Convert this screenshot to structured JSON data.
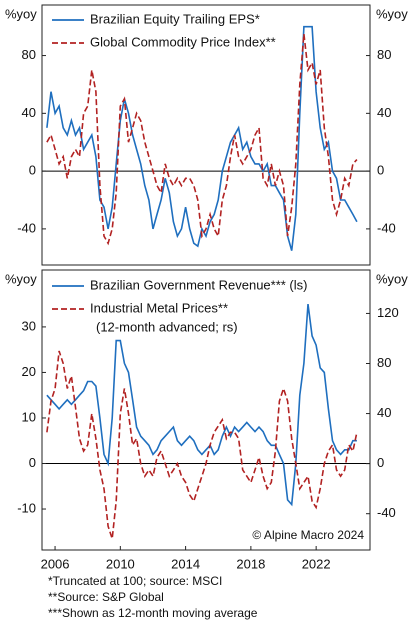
{
  "chart_data": [
    {
      "type": "line",
      "y_label": "%yoy",
      "y2_label": "%yoy",
      "x": [
        2005.5,
        2005.75,
        2006,
        2006.25,
        2006.5,
        2006.75,
        2007,
        2007.25,
        2007.5,
        2007.75,
        2008,
        2008.25,
        2008.5,
        2008.75,
        2009,
        2009.25,
        2009.5,
        2009.75,
        2010,
        2010.25,
        2010.5,
        2010.75,
        2011,
        2011.25,
        2011.5,
        2011.75,
        2012,
        2012.25,
        2012.5,
        2012.75,
        2013,
        2013.25,
        2013.5,
        2013.75,
        2014,
        2014.25,
        2014.5,
        2014.75,
        2015,
        2015.25,
        2015.5,
        2015.75,
        2016,
        2016.25,
        2016.5,
        2016.75,
        2017,
        2017.25,
        2017.5,
        2017.75,
        2018,
        2018.25,
        2018.5,
        2018.75,
        2019,
        2019.25,
        2019.5,
        2019.75,
        2020,
        2020.25,
        2020.5,
        2020.75,
        2021,
        2021.25,
        2021.5,
        2021.75,
        2022,
        2022.25,
        2022.5,
        2022.75,
        2023,
        2023.25,
        2023.5,
        2023.75,
        2024,
        2024.25,
        2024.5
      ],
      "xlim": [
        2005.2,
        2025.3
      ],
      "ylim": [
        -65,
        115
      ],
      "yticks": [
        -40,
        0,
        40,
        80
      ],
      "y2lim": [
        -65,
        115
      ],
      "y2ticks": [
        -40,
        0,
        40,
        80
      ],
      "zero_line": true,
      "series": [
        {
          "name": "Brazilian Equity Trailing EPS*",
          "color": "#1f6fbf",
          "style": "solid",
          "values": [
            30,
            55,
            40,
            45,
            30,
            25,
            35,
            25,
            30,
            15,
            20,
            25,
            10,
            -20,
            -25,
            -40,
            -25,
            5,
            35,
            50,
            40,
            25,
            15,
            5,
            -10,
            -20,
            -40,
            -30,
            -20,
            -5,
            -15,
            -35,
            -45,
            -40,
            -25,
            -40,
            -50,
            -52,
            -40,
            -45,
            -35,
            -30,
            -20,
            0,
            10,
            20,
            25,
            30,
            15,
            20,
            10,
            5,
            5,
            0,
            5,
            -10,
            -10,
            -15,
            -20,
            -45,
            -55,
            -30,
            40,
            100,
            100,
            100,
            55,
            30,
            15,
            20,
            0,
            -5,
            -20,
            -20,
            -25,
            -30,
            -35
          ]
        },
        {
          "name": "Global Commodity Price Index**",
          "color": "#b22222",
          "style": "dashed",
          "values": [
            20,
            25,
            15,
            5,
            10,
            -5,
            10,
            15,
            10,
            40,
            45,
            70,
            55,
            -10,
            -45,
            -50,
            -40,
            -15,
            45,
            50,
            20,
            30,
            40,
            35,
            20,
            10,
            0,
            -10,
            -15,
            5,
            -5,
            -10,
            -5,
            -10,
            -5,
            -5,
            -10,
            -20,
            -45,
            -40,
            -30,
            -40,
            -45,
            -20,
            -10,
            10,
            25,
            10,
            5,
            10,
            15,
            25,
            30,
            -5,
            -10,
            5,
            -10,
            0,
            -10,
            -45,
            -25,
            5,
            60,
            95,
            70,
            75,
            60,
            70,
            30,
            10,
            -20,
            -30,
            -20,
            -5,
            -10,
            5,
            8
          ]
        }
      ]
    },
    {
      "type": "line",
      "y_label": "%yoy",
      "y2_label": "%yoy",
      "x": [
        2005.5,
        2005.75,
        2006,
        2006.25,
        2006.5,
        2006.75,
        2007,
        2007.25,
        2007.5,
        2007.75,
        2008,
        2008.25,
        2008.5,
        2008.75,
        2009,
        2009.25,
        2009.5,
        2009.75,
        2010,
        2010.25,
        2010.5,
        2010.75,
        2011,
        2011.25,
        2011.5,
        2011.75,
        2012,
        2012.25,
        2012.5,
        2012.75,
        2013,
        2013.25,
        2013.5,
        2013.75,
        2014,
        2014.25,
        2014.5,
        2014.75,
        2015,
        2015.25,
        2015.5,
        2015.75,
        2016,
        2016.25,
        2016.5,
        2016.75,
        2017,
        2017.25,
        2017.5,
        2017.75,
        2018,
        2018.25,
        2018.5,
        2018.75,
        2019,
        2019.25,
        2019.5,
        2019.75,
        2020,
        2020.25,
        2020.5,
        2020.75,
        2021,
        2021.25,
        2021.5,
        2021.75,
        2022,
        2022.25,
        2022.5,
        2022.75,
        2023,
        2023.25,
        2023.5,
        2023.75,
        2024,
        2024.25,
        2024.5
      ],
      "xlim": [
        2005.2,
        2025.3
      ],
      "xticks": [
        2006,
        2010,
        2014,
        2018,
        2022
      ],
      "ylim": [
        -19,
        42.5
      ],
      "yticks": [
        -10,
        0,
        10,
        20,
        30
      ],
      "y2lim": [
        -69,
        154.7
      ],
      "y2ticks": [
        -40,
        0,
        40,
        80,
        120
      ],
      "zero_line": true,
      "legend_note": "(12-month advanced; rs)",
      "source": "© Alpine Macro 2024",
      "series": [
        {
          "name": "Brazilian Government Revenue*** (ls)",
          "color": "#1f6fbf",
          "style": "solid",
          "values": [
            15,
            14,
            13,
            12,
            13,
            14,
            13,
            14,
            15,
            16,
            18,
            18,
            17,
            10,
            2,
            0,
            10,
            27,
            27,
            22,
            20,
            14,
            8,
            6,
            5,
            4,
            2,
            3,
            5,
            6,
            7,
            8,
            5,
            4,
            5,
            6,
            5,
            3,
            2,
            3,
            4,
            2,
            3,
            6,
            8,
            6,
            8,
            7,
            8,
            9,
            8,
            7,
            8,
            7,
            5,
            4,
            4,
            2,
            0,
            -8,
            -9,
            0,
            15,
            22,
            35,
            28,
            26,
            21,
            20,
            12,
            5,
            3,
            2,
            3,
            3,
            5,
            5
          ]
        },
        {
          "name": "Industrial Metal Prices**",
          "color": "#b22222",
          "style": "dashed",
          "axis": "y2",
          "values": [
            25,
            50,
            60,
            90,
            80,
            60,
            70,
            45,
            20,
            10,
            15,
            40,
            20,
            -5,
            -20,
            -50,
            -60,
            -30,
            40,
            60,
            40,
            15,
            20,
            0,
            -10,
            -5,
            -10,
            5,
            10,
            0,
            -10,
            -5,
            0,
            -10,
            -15,
            -25,
            -30,
            -20,
            -10,
            0,
            15,
            25,
            30,
            35,
            20,
            25,
            25,
            20,
            -5,
            -10,
            -15,
            -5,
            5,
            -10,
            -20,
            -15,
            10,
            50,
            60,
            50,
            20,
            0,
            -20,
            -15,
            -10,
            -30,
            -35,
            -20,
            0,
            10,
            15,
            -5,
            -10,
            -5,
            15,
            10,
            25
          ]
        }
      ]
    }
  ],
  "footnotes": [
    "*Truncated at 100; source: MSCI",
    "**Source: S&P Global",
    "***Shown as 12-month moving average"
  ]
}
